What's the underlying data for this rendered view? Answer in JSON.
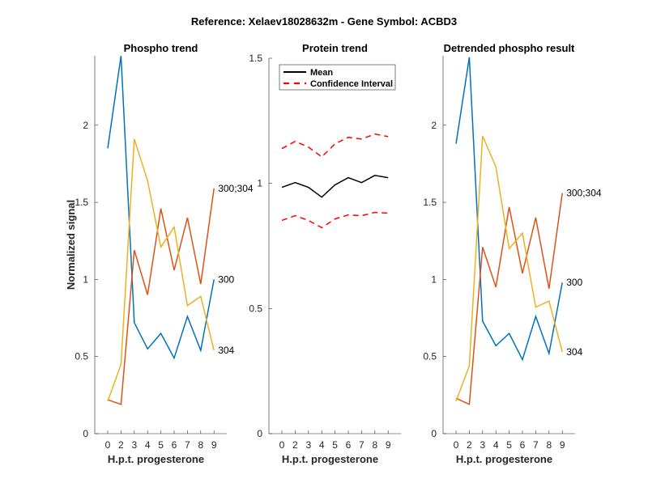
{
  "suptitle": "Reference:  Xelaev18028632m - Gene Symbol:  ACBD3",
  "colors": {
    "s300": "#0072BD",
    "s300_304": "#D95319",
    "s304": "#EDB120",
    "mean": "#000000",
    "ci": "#FF0000"
  },
  "chart_data": [
    {
      "type": "line",
      "title": "Phospho trend",
      "xlabel": "H.p.t. progesterone",
      "ylabel": "Normalized signal",
      "categories": [
        "0",
        "2",
        "3",
        "4",
        "5",
        "6",
        "7",
        "8",
        "9"
      ],
      "ylim": [
        0,
        2.45
      ],
      "yticks": [
        "0",
        "0.5",
        "1",
        "1.5",
        "2"
      ],
      "ytick_values": [
        0,
        0.5,
        1,
        1.5,
        2
      ],
      "grid": false,
      "series": [
        {
          "name": "300",
          "color_key": "s300",
          "values": [
            1.85,
            2.45,
            0.72,
            0.55,
            0.65,
            0.49,
            0.76,
            0.54,
            1.0
          ]
        },
        {
          "name": "300;304",
          "color_key": "s300_304",
          "values": [
            0.22,
            0.19,
            1.19,
            0.9,
            1.46,
            1.06,
            1.4,
            0.97,
            1.59
          ]
        },
        {
          "name": "304",
          "color_key": "s304",
          "values": [
            0.21,
            0.45,
            1.91,
            1.64,
            1.21,
            1.34,
            0.83,
            0.89,
            0.54
          ]
        }
      ]
    },
    {
      "type": "line",
      "title": "Protein trend",
      "xlabel": "H.p.t. progesterone",
      "ylabel": "",
      "categories": [
        "0",
        "2",
        "3",
        "4",
        "5",
        "6",
        "7",
        "8",
        "9"
      ],
      "ylim": [
        0,
        1.5
      ],
      "yticks": [
        "0",
        "0.5",
        "1",
        "1.5"
      ],
      "ytick_values": [
        0,
        0.5,
        1,
        1.5
      ],
      "grid": false,
      "legend": {
        "position": "top-left",
        "entries": [
          "Mean",
          "Confidence Interval"
        ]
      },
      "series": [
        {
          "name": "Mean",
          "color_key": "mean",
          "style": "solid",
          "values": [
            0.984,
            1.003,
            0.984,
            0.945,
            0.994,
            1.023,
            1.003,
            1.032,
            1.023
          ]
        },
        {
          "name": "Confidence Interval (upper)",
          "color_key": "ci",
          "style": "dashed",
          "values": [
            1.139,
            1.168,
            1.145,
            1.106,
            1.158,
            1.184,
            1.177,
            1.197,
            1.187
          ]
        },
        {
          "name": "Confidence Interval (lower)",
          "color_key": "ci",
          "style": "dashed",
          "values": [
            0.852,
            0.871,
            0.852,
            0.823,
            0.858,
            0.874,
            0.871,
            0.884,
            0.881
          ]
        }
      ]
    },
    {
      "type": "line",
      "title": "Detrended phospho result",
      "xlabel": "H.p.t. progesterone",
      "ylabel": "",
      "categories": [
        "0",
        "2",
        "3",
        "4",
        "5",
        "6",
        "7",
        "8",
        "9"
      ],
      "ylim": [
        0,
        2.45
      ],
      "yticks": [
        "0",
        "0.5",
        "1",
        "1.5",
        "2"
      ],
      "ytick_values": [
        0,
        0.5,
        1,
        1.5,
        2
      ],
      "grid": false,
      "series": [
        {
          "name": "300",
          "color_key": "s300",
          "values": [
            1.88,
            2.44,
            0.73,
            0.57,
            0.65,
            0.48,
            0.76,
            0.52,
            0.98
          ]
        },
        {
          "name": "300;304",
          "color_key": "s300_304",
          "values": [
            0.23,
            0.19,
            1.21,
            0.95,
            1.47,
            1.04,
            1.4,
            0.94,
            1.56
          ]
        },
        {
          "name": "304",
          "color_key": "s304",
          "values": [
            0.21,
            0.44,
            1.93,
            1.73,
            1.2,
            1.3,
            0.82,
            0.86,
            0.53
          ]
        }
      ]
    }
  ]
}
